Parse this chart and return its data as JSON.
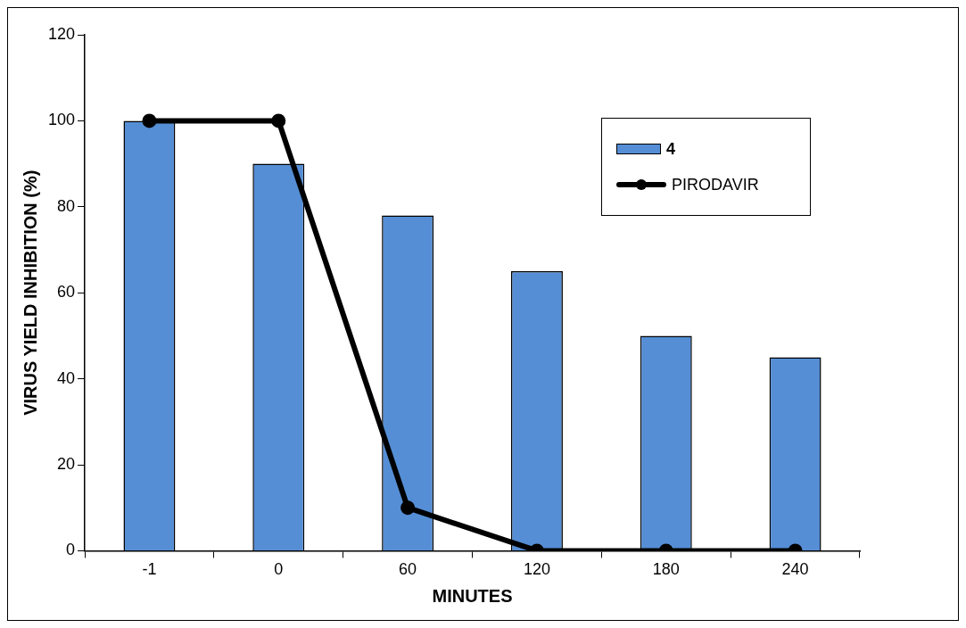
{
  "chart_data": {
    "type": "bar",
    "xlabel": "MINUTES",
    "ylabel": "VIRUS YIELD INHIBITION (%)",
    "categories": [
      "-1",
      "0",
      "60",
      "120",
      "180",
      "240"
    ],
    "series": [
      {
        "name": "4",
        "color": "#558ed5",
        "values": [
          100,
          90,
          78,
          65,
          50,
          45
        ]
      },
      {
        "name": "PIRODAVIR",
        "type": "line",
        "color": "#000000",
        "values": [
          100,
          100,
          10,
          0,
          0,
          0
        ]
      }
    ],
    "ylim": [
      0,
      120
    ],
    "yticks": [
      0,
      20,
      40,
      60,
      80,
      100,
      120
    ],
    "grid": false,
    "legend": "top right",
    "marker": "circle",
    "line_style": "solid"
  }
}
